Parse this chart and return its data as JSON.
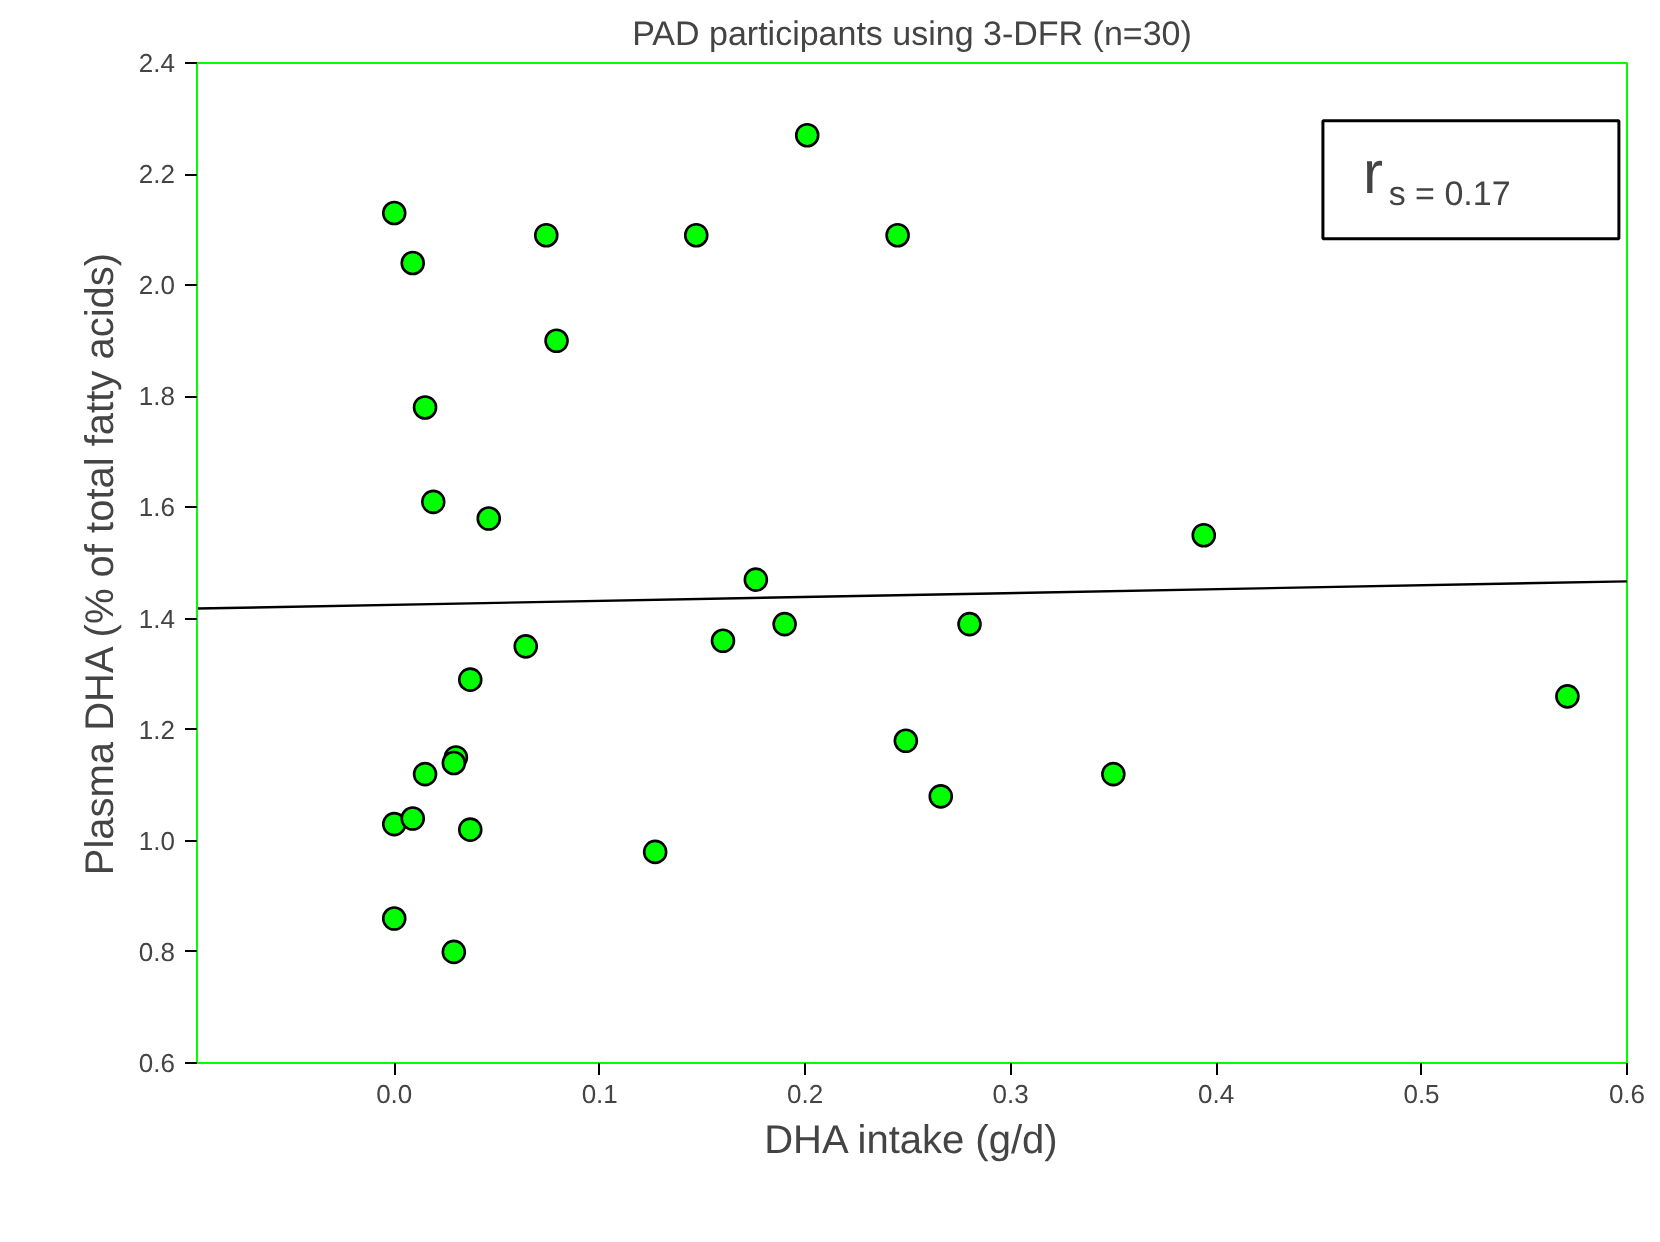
{
  "chart_data": {
    "type": "scatter",
    "title": "PAD participants using 3-DFR (n=30)",
    "xlabel": "DHA intake (g/d)",
    "ylabel": "Plasma DHA (% of total fatty acids)",
    "annotations": [
      "r$_{s = 0.17}$"
    ],
    "xlim": [
      -0.096,
      0.6
    ],
    "ylim": [
      0.6,
      2.4
    ],
    "xticks": [
      {
        "value": 0,
        "label": "0.0"
      },
      0.1,
      0.2,
      0.3,
      0.4,
      0.5,
      0.6
    ],
    "yticks": [
      0.6,
      0.8,
      {
        "value": 1,
        "label": "1.0"
      },
      1.2,
      1.4,
      1.6,
      1.8,
      {
        "value": 2,
        "label": "2.0"
      },
      2.2,
      2.4
    ],
    "grid": false,
    "series": [
      {
        "marker": "circle",
        "color": "#00ff00",
        "x": [
          0.0,
          0.009,
          0.074,
          0.147,
          0.201,
          0.245,
          0.079,
          0.015,
          0.019,
          0.046,
          0.176,
          0.064,
          0.16,
          0.19,
          0.28,
          0.037,
          0.03,
          0.029,
          0.015,
          0.0,
          0.009,
          0.037,
          0.127,
          0.0,
          0.029,
          0.249,
          0.266,
          0.394,
          0.35,
          0.571
        ],
        "values": [
          2.13,
          2.04,
          2.09,
          2.09,
          2.27,
          2.09,
          1.9,
          1.78,
          1.61,
          1.58,
          1.47,
          1.35,
          1.36,
          1.39,
          1.39,
          1.29,
          1.15,
          1.14,
          1.12,
          1.03,
          1.04,
          1.02,
          0.98,
          0.86,
          0.8,
          1.18,
          1.08,
          1.55,
          1.12,
          1.26
        ]
      },
      {
        "type": "line",
        "color": "#000000",
        "x": [
          -0.096,
          0.6
        ],
        "values": [
          1.418,
          1.467
        ]
      }
    ]
  }
}
